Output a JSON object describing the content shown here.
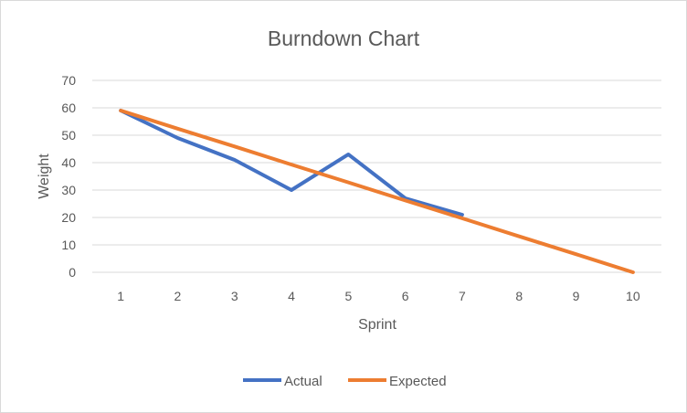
{
  "chart_data": {
    "type": "line",
    "title": "Burndown Chart",
    "xlabel": "Sprint",
    "ylabel": "Weight",
    "x": [
      1,
      2,
      3,
      4,
      5,
      6,
      7,
      8,
      9,
      10
    ],
    "ylim": [
      0,
      70
    ],
    "yticks": [
      0,
      10,
      20,
      30,
      40,
      50,
      60,
      70
    ],
    "grid": true,
    "legend_position": "bottom",
    "series": [
      {
        "name": "Actual",
        "color": "#4472c4",
        "values": [
          59,
          49,
          41,
          30,
          43,
          27,
          21,
          null,
          null,
          null
        ]
      },
      {
        "name": "Expected",
        "color": "#ed7d31",
        "values": [
          59,
          52.4,
          45.9,
          39.3,
          32.8,
          26.2,
          19.7,
          13.1,
          6.6,
          0
        ]
      }
    ]
  }
}
